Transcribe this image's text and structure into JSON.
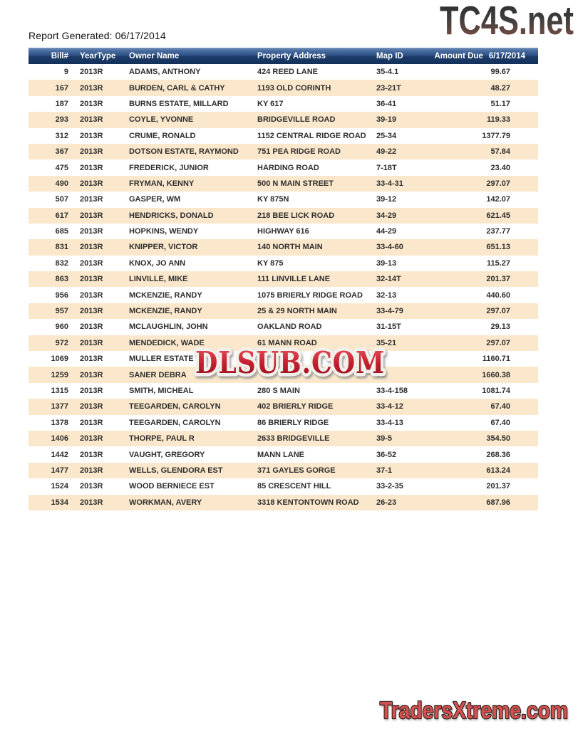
{
  "page": {
    "report_generated": "Report Generated: 06/17/2014"
  },
  "logos": {
    "tc4s": "TC4S.net",
    "watermark": "DLSUB.COM",
    "traders_xtreme": "TradersXtreme.com"
  },
  "colors": {
    "header_grad_top": "#7e99bf",
    "header_grad_mid": "#2e5187",
    "header_grad_bottom": "#12305a",
    "row_alt": "#fbe8cc",
    "table_text": "#2e2e2e",
    "watermark_red": "#c6202f",
    "watermark_outline": "#f2f0ea",
    "traders_red": "#d5514f",
    "traders_outline": "#32211d",
    "tc4s_dark": "#2a2a2a",
    "tc4s_red": "#8a5a50"
  },
  "table": {
    "columns": {
      "bill": "Bill#",
      "year": "YearType",
      "owner": "Owner Name",
      "address": "Property Address",
      "map": "Map ID",
      "amount_label": "Amount Due",
      "amount_date": "6/17/2014"
    },
    "rows": [
      {
        "bill": "9",
        "year": "2013R",
        "owner": "ADAMS, ANTHONY",
        "address": "424 REED LANE",
        "map": "35-4.1",
        "amount": "99.67"
      },
      {
        "bill": "167",
        "year": "2013R",
        "owner": "BURDEN, CARL & CATHY",
        "address": "1193 OLD CORINTH",
        "map": "23-21T",
        "amount": "48.27"
      },
      {
        "bill": "187",
        "year": "2013R",
        "owner": "BURNS ESTATE, MILLARD",
        "address": "KY 617",
        "map": "36-41",
        "amount": "51.17"
      },
      {
        "bill": "293",
        "year": "2013R",
        "owner": "COYLE, YVONNE",
        "address": "BRIDGEVILLE ROAD",
        "map": "39-19",
        "amount": "119.33"
      },
      {
        "bill": "312",
        "year": "2013R",
        "owner": "CRUME, RONALD",
        "address": "1152 CENTRAL RIDGE ROAD",
        "map": "25-34",
        "amount": "1377.79"
      },
      {
        "bill": "367",
        "year": "2013R",
        "owner": "DOTSON ESTATE, RAYMOND",
        "address": "751 PEA RIDGE ROAD",
        "map": "49-22",
        "amount": "57.84"
      },
      {
        "bill": "475",
        "year": "2013R",
        "owner": "FREDERICK, JUNIOR",
        "address": "HARDING ROAD",
        "map": "7-18T",
        "amount": "23.40"
      },
      {
        "bill": "490",
        "year": "2013R",
        "owner": "FRYMAN, KENNY",
        "address": "500 N MAIN STREET",
        "map": "33-4-31",
        "amount": "297.07"
      },
      {
        "bill": "507",
        "year": "2013R",
        "owner": "GASPER, WM",
        "address": "KY 875N",
        "map": "39-12",
        "amount": "142.07"
      },
      {
        "bill": "617",
        "year": "2013R",
        "owner": "HENDRICKS, DONALD",
        "address": "218 BEE LICK ROAD",
        "map": "34-29",
        "amount": "621.45"
      },
      {
        "bill": "685",
        "year": "2013R",
        "owner": "HOPKINS, WENDY",
        "address": "HIGHWAY 616",
        "map": "44-29",
        "amount": "237.77"
      },
      {
        "bill": "831",
        "year": "2013R",
        "owner": "KNIPPER, VICTOR",
        "address": "140 NORTH MAIN",
        "map": "33-4-60",
        "amount": "651.13"
      },
      {
        "bill": "832",
        "year": "2013R",
        "owner": "KNOX, JO ANN",
        "address": "KY 875",
        "map": "39-13",
        "amount": "115.27"
      },
      {
        "bill": "863",
        "year": "2013R",
        "owner": "LINVILLE, MIKE",
        "address": "111 LINVILLE LANE",
        "map": "32-14T",
        "amount": "201.37"
      },
      {
        "bill": "956",
        "year": "2013R",
        "owner": "MCKENZIE, RANDY",
        "address": "1075 BRIERLY RIDGE ROAD",
        "map": "32-13",
        "amount": "440.60"
      },
      {
        "bill": "957",
        "year": "2013R",
        "owner": "MCKENZIE, RANDY",
        "address": "25 & 29 NORTH MAIN",
        "map": "33-4-79",
        "amount": "297.07"
      },
      {
        "bill": "960",
        "year": "2013R",
        "owner": "MCLAUGHLIN, JOHN",
        "address": "OAKLAND ROAD",
        "map": "31-15T",
        "amount": "29.13"
      },
      {
        "bill": "972",
        "year": "2013R",
        "owner": "MENDEDICK, WADE",
        "address": "61 MANN ROAD",
        "map": "35-21",
        "amount": "297.07"
      },
      {
        "bill": "1069",
        "year": "2013R",
        "owner": "MULLER ESTATE",
        "address": "",
        "map": "-8",
        "amount": "1160.71"
      },
      {
        "bill": "1259",
        "year": "2013R",
        "owner": "SANER DEBRA",
        "address": "",
        "map": "13",
        "amount": "1660.38"
      },
      {
        "bill": "1315",
        "year": "2013R",
        "owner": "SMITH, MICHEAL",
        "address": "280 S MAIN",
        "map": "33-4-158",
        "amount": "1081.74"
      },
      {
        "bill": "1377",
        "year": "2013R",
        "owner": "TEEGARDEN, CAROLYN",
        "address": "402 BRIERLY RIDGE",
        "map": "33-4-12",
        "amount": "67.40"
      },
      {
        "bill": "1378",
        "year": "2013R",
        "owner": "TEEGARDEN, CAROLYN",
        "address": "86 BRIERLY RIDGE",
        "map": "33-4-13",
        "amount": "67.40"
      },
      {
        "bill": "1406",
        "year": "2013R",
        "owner": "THORPE, PAUL R",
        "address": "2633 BRIDGEVILLE",
        "map": "39-5",
        "amount": "354.50"
      },
      {
        "bill": "1442",
        "year": "2013R",
        "owner": "VAUGHT, GREGORY",
        "address": "MANN LANE",
        "map": "36-52",
        "amount": "268.36"
      },
      {
        "bill": "1477",
        "year": "2013R",
        "owner": "WELLS, GLENDORA EST",
        "address": "371 GAYLES GORGE",
        "map": "37-1",
        "amount": "613.24"
      },
      {
        "bill": "1524",
        "year": "2013R",
        "owner": "WOOD BERNIECE EST",
        "address": "85 CRESCENT HILL",
        "map": "33-2-35",
        "amount": "201.37"
      },
      {
        "bill": "1534",
        "year": "2013R",
        "owner": "WORKMAN, AVERY",
        "address": "3318 KENTONTOWN ROAD",
        "map": "26-23",
        "amount": "687.96"
      }
    ]
  }
}
